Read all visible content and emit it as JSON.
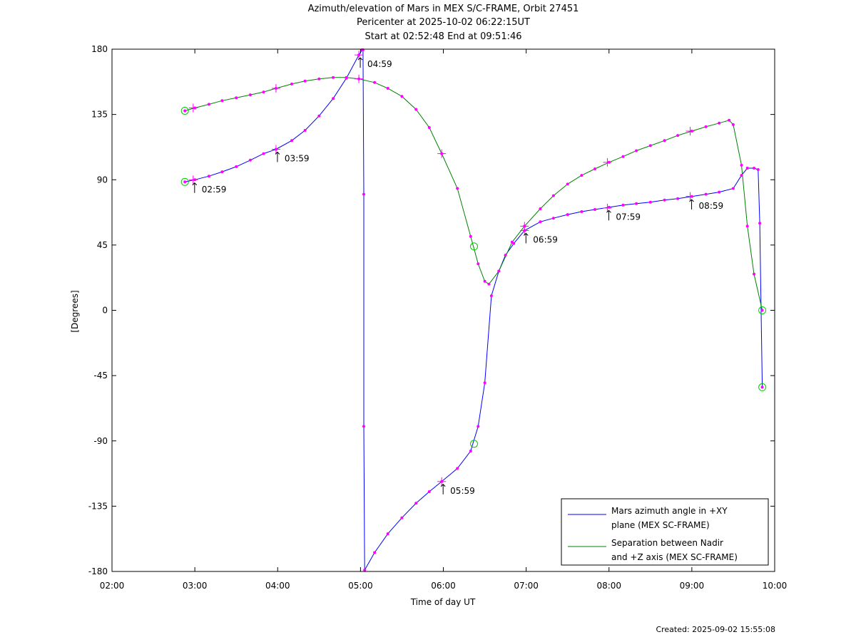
{
  "chart_data": {
    "type": "line",
    "title": "Azimuth/elevation of Mars in MEX S/C-FRAME,  Orbit 27451",
    "subtitle_lines": [
      "Pericenter at 2025-10-02 06:22:15UT",
      "Start at 02:52:48 End at 09:51:46"
    ],
    "xlabel": "Time of day UT",
    "ylabel": "[Degrees]",
    "xlim_hours": [
      2,
      10
    ],
    "ylim": [
      -180,
      180
    ],
    "x_ticks": [
      "02:00",
      "03:00",
      "04:00",
      "05:00",
      "06:00",
      "07:00",
      "08:00",
      "09:00",
      "10:00"
    ],
    "y_ticks": [
      180,
      135,
      90,
      45,
      0,
      -45,
      -90,
      -135,
      -180
    ],
    "legend_position": "bottom-right",
    "series": [
      {
        "name": "Mars azimuth angle in +XY plane (MEX SC-FRAME)",
        "legend_lines": [
          "Mars azimuth angle in +XY",
          "plane (MEX SC-FRAME)"
        ],
        "color": "#0000ff",
        "points": [
          [
            2.88,
            88.5
          ],
          [
            3.0,
            90
          ],
          [
            3.17,
            92.5
          ],
          [
            3.33,
            95.5
          ],
          [
            3.5,
            99
          ],
          [
            3.67,
            103.5
          ],
          [
            3.83,
            108
          ],
          [
            3.98,
            111
          ],
          [
            4.17,
            117
          ],
          [
            4.33,
            124
          ],
          [
            4.5,
            134
          ],
          [
            4.67,
            146
          ],
          [
            4.83,
            160
          ],
          [
            4.98,
            176
          ],
          [
            5.02,
            179.5
          ],
          [
            5.03,
            179.5
          ],
          [
            5.04,
            80
          ],
          [
            5.04,
            -80
          ],
          [
            5.05,
            -179
          ],
          [
            5.17,
            -167
          ],
          [
            5.33,
            -154
          ],
          [
            5.5,
            -143
          ],
          [
            5.67,
            -133
          ],
          [
            5.83,
            -125
          ],
          [
            5.98,
            -118
          ],
          [
            6.17,
            -109
          ],
          [
            6.33,
            -97
          ],
          [
            6.42,
            -80
          ],
          [
            6.5,
            -50
          ],
          [
            6.58,
            10
          ],
          [
            6.67,
            27
          ],
          [
            6.75,
            38
          ],
          [
            6.85,
            46
          ],
          [
            6.98,
            55
          ],
          [
            7.17,
            61
          ],
          [
            7.33,
            63.5
          ],
          [
            7.5,
            66
          ],
          [
            7.67,
            68
          ],
          [
            7.83,
            69.5
          ],
          [
            8.0,
            71
          ],
          [
            8.17,
            72.5
          ],
          [
            8.33,
            73.5
          ],
          [
            8.5,
            74.5
          ],
          [
            8.67,
            76
          ],
          [
            8.83,
            77
          ],
          [
            9.0,
            78.5
          ],
          [
            9.17,
            80
          ],
          [
            9.33,
            81.5
          ],
          [
            9.5,
            84
          ],
          [
            9.6,
            93
          ],
          [
            9.67,
            98
          ],
          [
            9.75,
            98
          ],
          [
            9.8,
            97
          ],
          [
            9.82,
            60
          ],
          [
            9.85,
            -53
          ]
        ]
      },
      {
        "name": "Separation between Nadir and +Z axis (MEX SC-FRAME)",
        "legend_lines": [
          "Separation between Nadir",
          "and +Z axis (MEX SC-FRAME)"
        ],
        "color": "#008000",
        "points": [
          [
            2.88,
            137.5
          ],
          [
            3.0,
            139.5
          ],
          [
            3.17,
            142
          ],
          [
            3.33,
            144.5
          ],
          [
            3.5,
            146.5
          ],
          [
            3.67,
            148.5
          ],
          [
            3.83,
            150.5
          ],
          [
            3.98,
            153
          ],
          [
            4.17,
            156
          ],
          [
            4.33,
            158
          ],
          [
            4.5,
            159.5
          ],
          [
            4.67,
            160.5
          ],
          [
            4.83,
            160.5
          ],
          [
            4.98,
            159.5
          ],
          [
            5.17,
            157
          ],
          [
            5.33,
            153
          ],
          [
            5.5,
            147.5
          ],
          [
            5.67,
            138.5
          ],
          [
            5.83,
            126
          ],
          [
            5.98,
            108
          ],
          [
            6.17,
            84
          ],
          [
            6.33,
            51
          ],
          [
            6.42,
            32
          ],
          [
            6.5,
            20
          ],
          [
            6.55,
            18
          ],
          [
            6.67,
            27
          ],
          [
            6.83,
            47
          ],
          [
            6.98,
            58
          ],
          [
            7.17,
            70
          ],
          [
            7.33,
            79
          ],
          [
            7.5,
            87
          ],
          [
            7.67,
            93
          ],
          [
            7.83,
            97.5
          ],
          [
            8.0,
            102
          ],
          [
            8.17,
            106
          ],
          [
            8.33,
            110
          ],
          [
            8.5,
            113.5
          ],
          [
            8.67,
            117
          ],
          [
            8.83,
            120.5
          ],
          [
            9.0,
            123.5
          ],
          [
            9.17,
            126.5
          ],
          [
            9.33,
            129
          ],
          [
            9.45,
            131
          ],
          [
            9.5,
            128
          ],
          [
            9.6,
            100
          ],
          [
            9.67,
            58
          ],
          [
            9.75,
            25
          ],
          [
            9.85,
            0
          ]
        ]
      }
    ],
    "hour_labels": [
      {
        "label": "02:59",
        "series": 0,
        "x": 2.98
      },
      {
        "label": "03:59",
        "series": 0,
        "x": 3.98
      },
      {
        "label": "04:59",
        "series": 0,
        "x": 4.98
      },
      {
        "label": "05:59",
        "series": 0,
        "x": 5.98
      },
      {
        "label": "06:59",
        "series": 0,
        "x": 6.98
      },
      {
        "label": "07:59",
        "series": 0,
        "x": 7.98
      },
      {
        "label": "08:59",
        "series": 0,
        "x": 8.98
      }
    ],
    "plus_markers": [
      {
        "series": 0,
        "x": 2.98,
        "y": 90
      },
      {
        "series": 0,
        "x": 3.98,
        "y": 111
      },
      {
        "series": 0,
        "x": 4.98,
        "y": 176
      },
      {
        "series": 0,
        "x": 5.98,
        "y": -118
      },
      {
        "series": 0,
        "x": 6.98,
        "y": 55
      },
      {
        "series": 0,
        "x": 7.98,
        "y": 70.5
      },
      {
        "series": 0,
        "x": 8.98,
        "y": 78.5
      },
      {
        "series": 1,
        "x": 2.98,
        "y": 139.5
      },
      {
        "series": 1,
        "x": 3.98,
        "y": 153
      },
      {
        "series": 1,
        "x": 4.98,
        "y": 159.5
      },
      {
        "series": 1,
        "x": 5.98,
        "y": 108
      },
      {
        "series": 1,
        "x": 6.98,
        "y": 58
      },
      {
        "series": 1,
        "x": 7.98,
        "y": 102
      },
      {
        "series": 1,
        "x": 8.98,
        "y": 123.5
      }
    ],
    "circle_markers": [
      {
        "x": 2.88,
        "y": 137.5
      },
      {
        "x": 2.88,
        "y": 88.5
      },
      {
        "x": 6.37,
        "y": 44
      },
      {
        "x": 6.37,
        "y": -92
      },
      {
        "x": 9.85,
        "y": 0
      },
      {
        "x": 9.85,
        "y": -53
      }
    ],
    "dot_color": "#ff00ff",
    "circle_color": "#00cc00"
  },
  "footer": "Created: 2025-09-02 15:55:08"
}
